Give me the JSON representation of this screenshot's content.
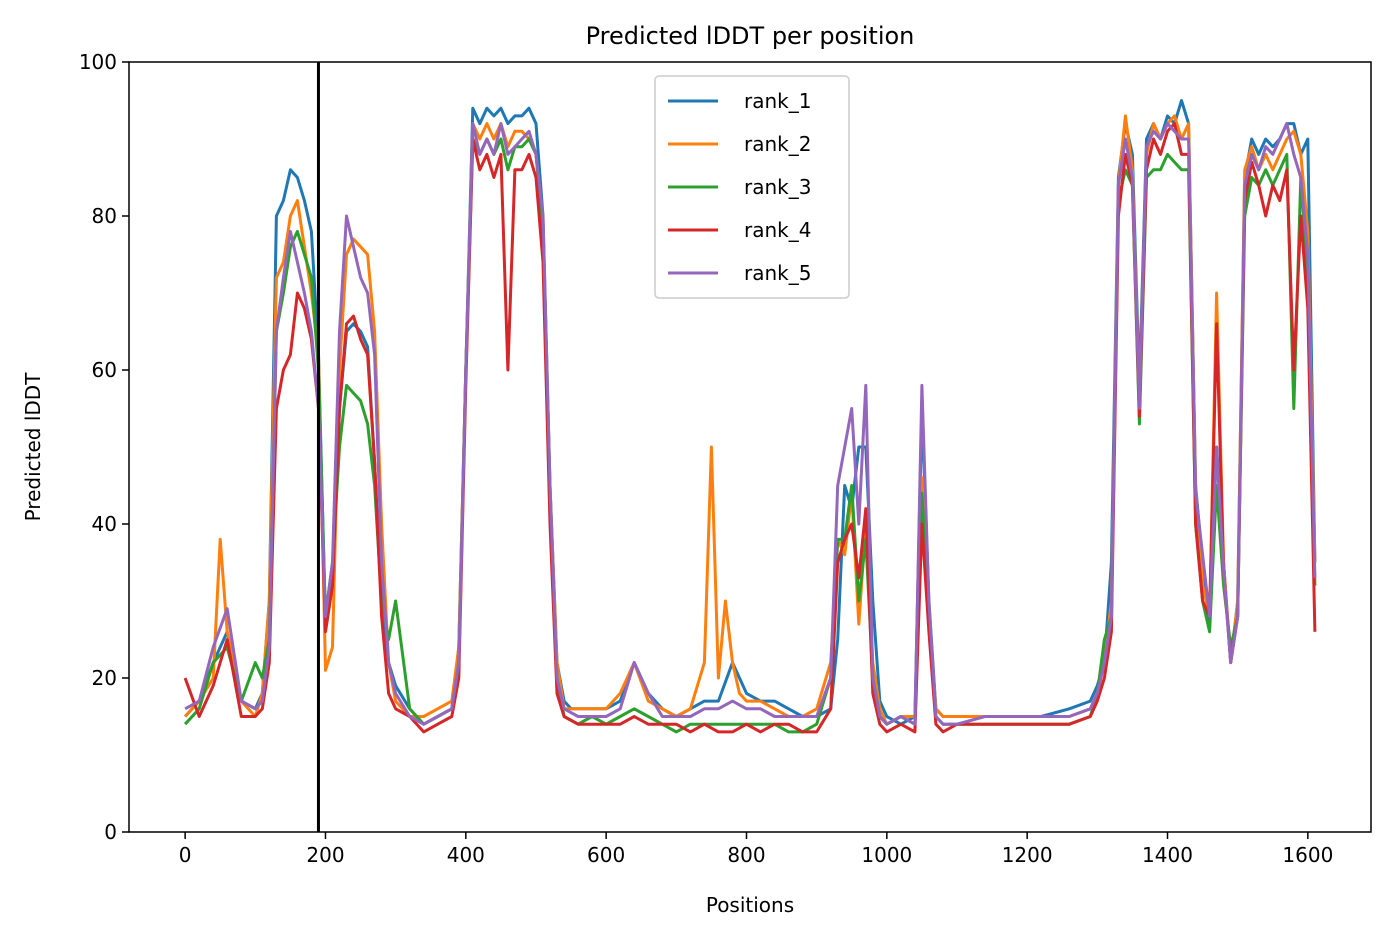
{
  "chart_data": {
    "type": "line",
    "title": "Predicted lDDT per position",
    "xlabel": "Positions",
    "ylabel": "Predicted lDDT",
    "xlim": [
      -80,
      1690
    ],
    "ylim": [
      0,
      100
    ],
    "xticks": [
      0,
      200,
      400,
      600,
      800,
      1000,
      1200,
      1400,
      1600
    ],
    "yticks": [
      0,
      20,
      40,
      60,
      80,
      100
    ],
    "grid": false,
    "legend_position": "top-center",
    "vline": {
      "x": 190,
      "color": "#000000"
    },
    "series": [
      {
        "name": "rank_1",
        "color": "#1f77b4",
        "x": [
          0,
          20,
          40,
          60,
          80,
          100,
          110,
          120,
          130,
          140,
          150,
          160,
          170,
          180,
          190,
          200,
          210,
          220,
          230,
          240,
          250,
          260,
          270,
          280,
          290,
          300,
          320,
          340,
          360,
          380,
          390,
          400,
          410,
          420,
          430,
          440,
          450,
          460,
          470,
          480,
          490,
          500,
          510,
          520,
          530,
          540,
          550,
          560,
          580,
          600,
          620,
          640,
          660,
          680,
          700,
          720,
          740,
          760,
          780,
          800,
          820,
          840,
          860,
          880,
          900,
          920,
          930,
          940,
          950,
          960,
          970,
          980,
          990,
          1000,
          1020,
          1040,
          1050,
          1060,
          1070,
          1080,
          1100,
          1140,
          1180,
          1220,
          1260,
          1290,
          1300,
          1310,
          1320,
          1330,
          1340,
          1350,
          1360,
          1370,
          1380,
          1390,
          1400,
          1410,
          1420,
          1430,
          1440,
          1450,
          1460,
          1470,
          1480,
          1490,
          1500,
          1510,
          1520,
          1530,
          1540,
          1550,
          1560,
          1570,
          1580,
          1590,
          1600,
          1610
        ],
        "y": [
          15,
          17,
          22,
          26,
          17,
          16,
          18,
          30,
          80,
          82,
          86,
          85,
          82,
          78,
          62,
          27,
          32,
          55,
          65,
          66,
          65,
          63,
          48,
          30,
          22,
          19,
          16,
          14,
          15,
          16,
          24,
          60,
          94,
          92,
          94,
          93,
          94,
          92,
          93,
          93,
          94,
          92,
          80,
          45,
          22,
          17,
          16,
          16,
          16,
          16,
          17,
          22,
          18,
          16,
          15,
          16,
          17,
          17,
          22,
          18,
          17,
          17,
          16,
          15,
          15,
          16,
          25,
          45,
          42,
          50,
          50,
          30,
          17,
          15,
          14,
          15,
          55,
          30,
          16,
          15,
          15,
          15,
          15,
          15,
          16,
          17,
          19,
          22,
          35,
          85,
          92,
          88,
          58,
          90,
          92,
          90,
          93,
          92,
          95,
          92,
          45,
          35,
          27,
          50,
          35,
          22,
          30,
          85,
          90,
          88,
          90,
          89,
          90,
          92,
          92,
          88,
          90,
          35
        ]
      },
      {
        "name": "rank_2",
        "color": "#ff7f0e",
        "x": [
          0,
          20,
          40,
          50,
          60,
          80,
          100,
          110,
          120,
          130,
          140,
          150,
          160,
          170,
          180,
          190,
          200,
          210,
          220,
          230,
          240,
          250,
          260,
          270,
          280,
          290,
          300,
          320,
          340,
          360,
          380,
          390,
          400,
          410,
          420,
          430,
          440,
          450,
          460,
          470,
          480,
          490,
          500,
          510,
          520,
          530,
          540,
          560,
          580,
          600,
          620,
          640,
          660,
          680,
          700,
          720,
          740,
          750,
          760,
          770,
          780,
          790,
          800,
          820,
          840,
          860,
          880,
          900,
          920,
          930,
          940,
          950,
          960,
          970,
          980,
          990,
          1000,
          1020,
          1040,
          1050,
          1060,
          1070,
          1080,
          1100,
          1140,
          1180,
          1220,
          1260,
          1290,
          1300,
          1310,
          1320,
          1330,
          1340,
          1350,
          1360,
          1370,
          1380,
          1390,
          1400,
          1410,
          1420,
          1430,
          1440,
          1450,
          1460,
          1470,
          1480,
          1490,
          1500,
          1510,
          1520,
          1530,
          1540,
          1550,
          1560,
          1570,
          1580,
          1590,
          1600,
          1610
        ],
        "y": [
          15,
          17,
          20,
          38,
          26,
          17,
          15,
          18,
          30,
          72,
          74,
          80,
          82,
          76,
          70,
          62,
          21,
          24,
          60,
          75,
          77,
          76,
          75,
          65,
          40,
          22,
          17,
          15,
          15,
          16,
          17,
          24,
          60,
          92,
          90,
          92,
          90,
          92,
          89,
          91,
          91,
          90,
          88,
          78,
          45,
          22,
          16,
          16,
          16,
          16,
          18,
          22,
          17,
          16,
          15,
          16,
          22,
          50,
          20,
          30,
          22,
          18,
          17,
          17,
          16,
          15,
          15,
          16,
          22,
          38,
          36,
          44,
          27,
          40,
          22,
          16,
          14,
          15,
          15,
          46,
          28,
          16,
          15,
          15,
          15,
          15,
          15,
          15,
          16,
          18,
          22,
          30,
          84,
          93,
          86,
          56,
          88,
          92,
          90,
          92,
          93,
          90,
          92,
          45,
          32,
          28,
          70,
          35,
          22,
          30,
          86,
          89,
          86,
          88,
          86,
          88,
          90,
          91,
          88,
          78,
          35
        ]
      },
      {
        "name": "rank_3",
        "color": "#2ca02c",
        "x": [
          0,
          20,
          40,
          60,
          80,
          100,
          110,
          120,
          130,
          140,
          150,
          160,
          170,
          180,
          190,
          200,
          210,
          220,
          230,
          240,
          250,
          260,
          270,
          280,
          290,
          300,
          320,
          340,
          360,
          380,
          390,
          400,
          410,
          420,
          430,
          440,
          450,
          460,
          470,
          480,
          490,
          500,
          510,
          520,
          530,
          540,
          560,
          580,
          600,
          620,
          640,
          660,
          680,
          700,
          720,
          740,
          760,
          780,
          800,
          820,
          840,
          860,
          880,
          900,
          920,
          930,
          940,
          950,
          960,
          970,
          980,
          990,
          1000,
          1020,
          1040,
          1050,
          1060,
          1070,
          1080,
          1100,
          1140,
          1180,
          1220,
          1260,
          1290,
          1300,
          1310,
          1320,
          1330,
          1340,
          1350,
          1360,
          1370,
          1380,
          1390,
          1400,
          1410,
          1420,
          1430,
          1440,
          1450,
          1460,
          1470,
          1480,
          1490,
          1500,
          1510,
          1520,
          1530,
          1540,
          1550,
          1560,
          1570,
          1580,
          1590,
          1600,
          1610
        ],
        "y": [
          14,
          16,
          22,
          24,
          17,
          22,
          20,
          25,
          65,
          70,
          76,
          78,
          75,
          72,
          60,
          28,
          35,
          50,
          58,
          57,
          56,
          53,
          45,
          30,
          25,
          30,
          16,
          14,
          15,
          16,
          22,
          60,
          90,
          88,
          90,
          88,
          90,
          86,
          89,
          89,
          90,
          88,
          78,
          42,
          20,
          15,
          14,
          15,
          14,
          15,
          16,
          15,
          14,
          13,
          14,
          14,
          14,
          14,
          14,
          14,
          14,
          13,
          13,
          14,
          20,
          38,
          38,
          45,
          30,
          38,
          20,
          15,
          14,
          15,
          14,
          44,
          28,
          15,
          14,
          14,
          14,
          14,
          14,
          14,
          15,
          18,
          25,
          28,
          82,
          86,
          84,
          53,
          85,
          86,
          86,
          88,
          87,
          86,
          86,
          40,
          30,
          26,
          45,
          32,
          24,
          28,
          80,
          85,
          84,
          86,
          84,
          86,
          88,
          55,
          85,
          72,
          32
        ]
      },
      {
        "name": "rank_4",
        "color": "#d62728",
        "x": [
          0,
          20,
          40,
          60,
          80,
          100,
          110,
          120,
          130,
          140,
          150,
          160,
          170,
          180,
          190,
          200,
          210,
          220,
          230,
          240,
          250,
          260,
          270,
          280,
          290,
          300,
          320,
          340,
          360,
          380,
          390,
          400,
          410,
          420,
          430,
          440,
          450,
          460,
          470,
          480,
          490,
          500,
          510,
          520,
          530,
          540,
          560,
          580,
          600,
          620,
          640,
          660,
          680,
          700,
          720,
          740,
          760,
          780,
          800,
          820,
          840,
          860,
          880,
          900,
          920,
          930,
          940,
          950,
          960,
          970,
          980,
          990,
          1000,
          1020,
          1040,
          1050,
          1060,
          1070,
          1080,
          1100,
          1140,
          1180,
          1220,
          1260,
          1290,
          1300,
          1310,
          1320,
          1330,
          1340,
          1350,
          1360,
          1370,
          1380,
          1390,
          1400,
          1410,
          1420,
          1430,
          1440,
          1450,
          1460,
          1470,
          1480,
          1490,
          1500,
          1510,
          1520,
          1530,
          1540,
          1550,
          1560,
          1570,
          1580,
          1590,
          1600,
          1610
        ],
        "y": [
          20,
          15,
          19,
          25,
          15,
          15,
          16,
          22,
          55,
          60,
          62,
          70,
          68,
          64,
          55,
          26,
          32,
          55,
          66,
          67,
          64,
          62,
          48,
          28,
          18,
          16,
          15,
          13,
          14,
          15,
          20,
          58,
          90,
          86,
          88,
          85,
          88,
          60,
          86,
          86,
          88,
          85,
          74,
          40,
          18,
          15,
          14,
          14,
          14,
          14,
          15,
          14,
          14,
          14,
          13,
          14,
          13,
          13,
          14,
          13,
          14,
          14,
          13,
          13,
          16,
          35,
          38,
          40,
          33,
          42,
          18,
          14,
          13,
          14,
          13,
          40,
          26,
          14,
          13,
          14,
          14,
          14,
          14,
          14,
          15,
          17,
          20,
          26,
          80,
          88,
          84,
          54,
          86,
          90,
          88,
          91,
          92,
          88,
          88,
          40,
          30,
          28,
          66,
          34,
          22,
          28,
          82,
          87,
          84,
          80,
          84,
          82,
          86,
          60,
          80,
          68,
          26
        ]
      },
      {
        "name": "rank_5",
        "color": "#9467bd",
        "x": [
          0,
          20,
          40,
          60,
          80,
          100,
          110,
          120,
          130,
          140,
          150,
          160,
          170,
          180,
          190,
          200,
          210,
          220,
          230,
          240,
          250,
          260,
          270,
          280,
          290,
          300,
          320,
          340,
          360,
          380,
          390,
          400,
          410,
          420,
          430,
          440,
          450,
          460,
          470,
          480,
          490,
          500,
          510,
          520,
          530,
          540,
          560,
          580,
          600,
          620,
          640,
          660,
          680,
          700,
          720,
          740,
          760,
          780,
          800,
          820,
          840,
          860,
          880,
          900,
          920,
          930,
          940,
          950,
          960,
          970,
          980,
          990,
          1000,
          1020,
          1040,
          1050,
          1060,
          1070,
          1080,
          1100,
          1140,
          1180,
          1220,
          1260,
          1290,
          1300,
          1310,
          1320,
          1330,
          1340,
          1350,
          1360,
          1370,
          1380,
          1390,
          1400,
          1410,
          1420,
          1430,
          1440,
          1450,
          1460,
          1470,
          1480,
          1490,
          1500,
          1510,
          1520,
          1530,
          1540,
          1550,
          1560,
          1570,
          1580,
          1590,
          1600,
          1610
        ],
        "y": [
          16,
          17,
          24,
          29,
          17,
          16,
          17,
          24,
          65,
          72,
          78,
          74,
          70,
          65,
          55,
          28,
          35,
          65,
          80,
          76,
          72,
          70,
          62,
          35,
          22,
          18,
          15,
          14,
          15,
          16,
          22,
          60,
          92,
          88,
          90,
          88,
          92,
          88,
          89,
          90,
          91,
          88,
          80,
          45,
          20,
          16,
          15,
          15,
          15,
          16,
          22,
          18,
          15,
          15,
          15,
          16,
          16,
          17,
          16,
          16,
          15,
          15,
          15,
          15,
          20,
          45,
          50,
          55,
          40,
          58,
          20,
          15,
          14,
          15,
          14,
          58,
          30,
          15,
          14,
          14,
          15,
          15,
          15,
          15,
          16,
          18,
          22,
          28,
          84,
          90,
          85,
          55,
          89,
          91,
          90,
          92,
          91,
          90,
          90,
          44,
          36,
          28,
          50,
          34,
          22,
          28,
          84,
          88,
          86,
          89,
          88,
          90,
          92,
          88,
          85,
          75,
          33
        ]
      }
    ]
  }
}
